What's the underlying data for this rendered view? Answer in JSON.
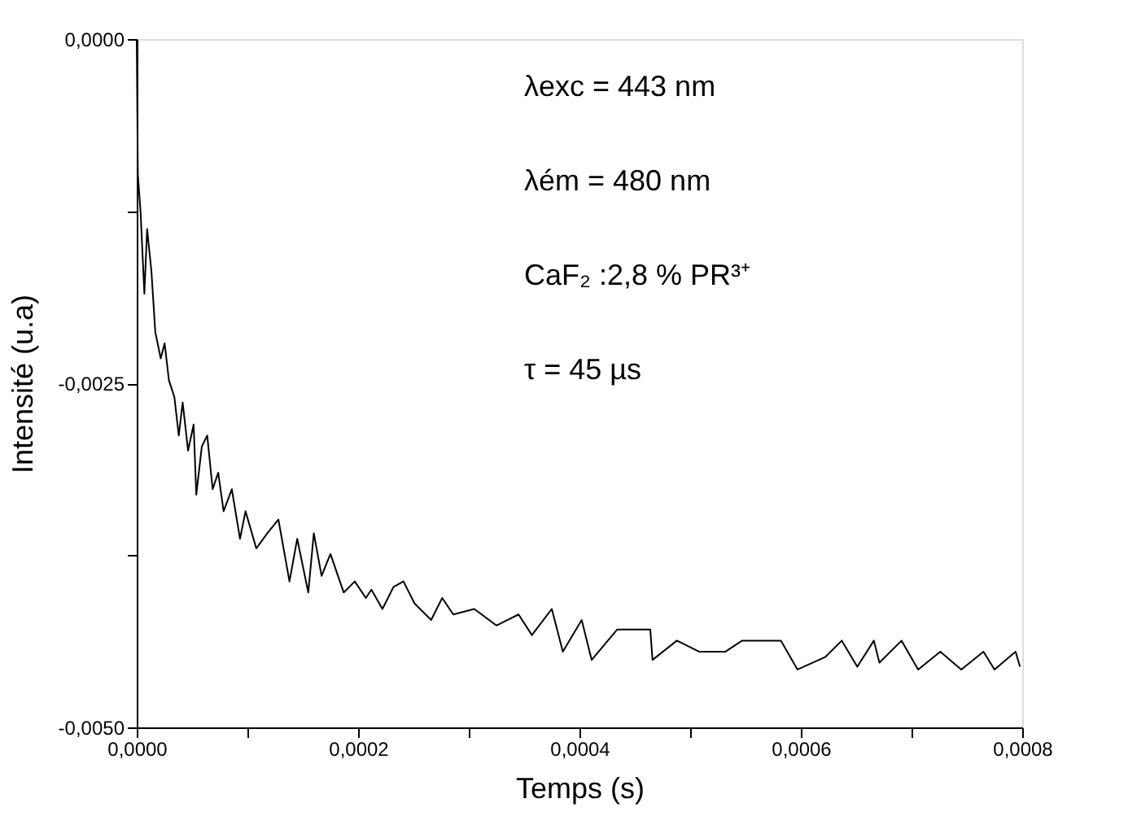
{
  "chart_data": {
    "type": "line",
    "xlabel": "Temps (s)",
    "ylabel": "Intensité (u.a)",
    "xlim": [
      0,
      0.0008
    ],
    "ylim": [
      -0.005,
      0
    ],
    "xticks": [
      {
        "value": 0,
        "label": "0,0000"
      },
      {
        "value": 0.0001,
        "label": null
      },
      {
        "value": 0.0002,
        "label": "0,0002"
      },
      {
        "value": 0.0003,
        "label": null
      },
      {
        "value": 0.0004,
        "label": "0,0004"
      },
      {
        "value": 0.0005,
        "label": null
      },
      {
        "value": 0.0006,
        "label": "0,0006"
      },
      {
        "value": 0.0007,
        "label": null
      },
      {
        "value": 0.0008,
        "label": "0,0008"
      }
    ],
    "yticks": [
      {
        "value": -0.005,
        "label": "-0,0050"
      },
      {
        "value": -0.00375,
        "label": null
      },
      {
        "value": -0.0025,
        "label": "-0,0025"
      },
      {
        "value": -0.00125,
        "label": null
      },
      {
        "value": 0,
        "label": "0,0000"
      }
    ],
    "grid": false,
    "marker": "none",
    "line_style": "solid",
    "annotations": [
      "λexc = 443  nm",
      "λém = 480 nm",
      "CaF₂ :2,8 % PR³⁺",
      "τ  =  45 µs"
    ],
    "series": [
      {
        "color": "#000000",
        "x": [
          0,
          1e-06,
          3.5e-06,
          6.9e-06,
          9.4e-06,
          1.33e-05,
          1.68e-05,
          2.17e-05,
          2.52e-05,
          2.91e-05,
          3.4e-05,
          3.8e-05,
          4.15e-05,
          4.64e-05,
          5.14e-05,
          5.38e-05,
          5.88e-05,
          6.37e-05,
          6.86e-05,
          7.36e-05,
          7.85e-05,
          8.59e-05,
          9.33e-05,
          9.83e-05,
          0.000108,
          0.000118,
          0.000128,
          0.000138,
          0.000145,
          0.000155,
          0.00016,
          0.000167,
          0.000175,
          0.000187,
          0.000197,
          0.000207,
          0.000212,
          0.000222,
          0.000232,
          0.000241,
          0.000251,
          0.000266,
          0.000276,
          0.000286,
          0.000305,
          0.000325,
          0.000345,
          0.000357,
          0.000375,
          0.000385,
          0.000402,
          0.000411,
          0.000434,
          0.000464,
          0.000466,
          0.000488,
          0.000508,
          0.000532,
          0.000547,
          0.000582,
          0.000597,
          0.000622,
          0.000637,
          0.000651,
          0.000666,
          0.000671,
          0.000691,
          0.000706,
          0.000726,
          0.000745,
          0.000765,
          0.000775,
          0.000794,
          0.000798
        ],
        "values": [
          0,
          -0.00098,
          -0.00126,
          -0.00185,
          -0.00138,
          -0.00169,
          -0.00213,
          -0.00232,
          -0.00221,
          -0.00248,
          -0.0026,
          -0.00288,
          -0.00264,
          -0.00299,
          -0.0028,
          -0.00331,
          -0.00296,
          -0.00288,
          -0.00327,
          -0.00315,
          -0.00343,
          -0.00327,
          -0.00363,
          -0.00343,
          -0.0037,
          -0.00359,
          -0.00349,
          -0.00394,
          -0.00363,
          -0.00402,
          -0.00359,
          -0.0039,
          -0.00374,
          -0.00402,
          -0.00394,
          -0.00406,
          -0.004,
          -0.00414,
          -0.00398,
          -0.00394,
          -0.0041,
          -0.00422,
          -0.00406,
          -0.00418,
          -0.00414,
          -0.00426,
          -0.00418,
          -0.00433,
          -0.00414,
          -0.00445,
          -0.00422,
          -0.00451,
          -0.00429,
          -0.00429,
          -0.00451,
          -0.00437,
          -0.00445,
          -0.00445,
          -0.00437,
          -0.00437,
          -0.00458,
          -0.00449,
          -0.00437,
          -0.00456,
          -0.00437,
          -0.00453,
          -0.00437,
          -0.00458,
          -0.00445,
          -0.00458,
          -0.00445,
          -0.00458,
          -0.00445,
          -0.00456
        ]
      }
    ]
  }
}
